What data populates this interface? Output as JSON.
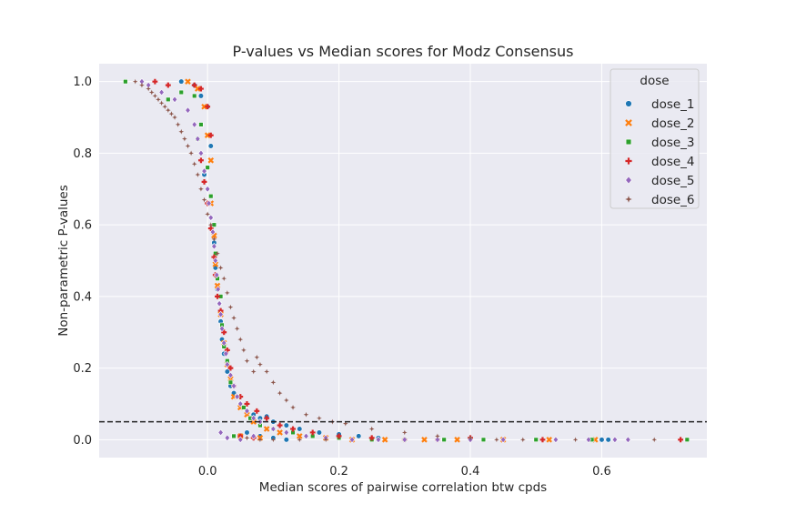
{
  "chart_data": {
    "type": "scatter",
    "title": "P-values vs Median scores for Modz Consensus",
    "xlabel": "Median scores of pairwise correlation btw cpds",
    "ylabel": "Non-parametric P-values",
    "xlim": [
      -0.165,
      0.76
    ],
    "ylim": [
      -0.05,
      1.05
    ],
    "x_ticks": [
      "0.0",
      "0.2",
      "0.4",
      "0.6"
    ],
    "x_tick_values": [
      0.0,
      0.2,
      0.4,
      0.6
    ],
    "y_ticks": [
      "0.0",
      "0.2",
      "0.4",
      "0.6",
      "0.8",
      "1.0"
    ],
    "y_tick_values": [
      0.0,
      0.2,
      0.4,
      0.6,
      0.8,
      1.0
    ],
    "grid": true,
    "background_color": "#eaeaf2",
    "reference_line": {
      "y": 0.05,
      "style": "dashed",
      "color": "#222222"
    },
    "legend": {
      "title": "dose",
      "placement": "top-right"
    },
    "series": [
      {
        "name": "dose_1",
        "marker": "circle",
        "color": "#1f77b4",
        "points": [
          [
            -0.04,
            1.0
          ],
          [
            -0.02,
            0.99
          ],
          [
            -0.01,
            0.96
          ],
          [
            0.0,
            0.93
          ],
          [
            -0.01,
            0.88
          ],
          [
            0.005,
            0.82
          ],
          [
            -0.005,
            0.74
          ],
          [
            0.0,
            0.7
          ],
          [
            0.005,
            0.62
          ],
          [
            0.01,
            0.55
          ],
          [
            0.012,
            0.48
          ],
          [
            0.015,
            0.42
          ],
          [
            0.018,
            0.38
          ],
          [
            0.02,
            0.33
          ],
          [
            0.022,
            0.28
          ],
          [
            0.025,
            0.24
          ],
          [
            0.03,
            0.19
          ],
          [
            0.035,
            0.15
          ],
          [
            0.04,
            0.13
          ],
          [
            0.05,
            0.1
          ],
          [
            0.06,
            0.08
          ],
          [
            0.07,
            0.07
          ],
          [
            0.08,
            0.06
          ],
          [
            0.09,
            0.065
          ],
          [
            0.1,
            0.05
          ],
          [
            0.12,
            0.04
          ],
          [
            0.14,
            0.03
          ],
          [
            0.17,
            0.02
          ],
          [
            0.2,
            0.015
          ],
          [
            0.23,
            0.01
          ],
          [
            0.26,
            0.005
          ],
          [
            0.3,
            0.0
          ],
          [
            0.35,
            0.0
          ],
          [
            0.45,
            0.0
          ],
          [
            0.6,
            0.0
          ],
          [
            0.61,
            0.0
          ],
          [
            0.06,
            0.02
          ],
          [
            0.08,
            0.01
          ],
          [
            0.1,
            0.005
          ],
          [
            0.12,
            0.0
          ]
        ]
      },
      {
        "name": "dose_2",
        "marker": "x",
        "color": "#ff7f0e",
        "points": [
          [
            -0.03,
            1.0
          ],
          [
            -0.015,
            0.98
          ],
          [
            -0.005,
            0.93
          ],
          [
            0.0,
            0.85
          ],
          [
            0.005,
            0.78
          ],
          [
            0.005,
            0.66
          ],
          [
            0.01,
            0.57
          ],
          [
            0.012,
            0.49
          ],
          [
            0.015,
            0.43
          ],
          [
            0.02,
            0.35
          ],
          [
            0.025,
            0.27
          ],
          [
            0.03,
            0.21
          ],
          [
            0.035,
            0.17
          ],
          [
            0.04,
            0.12
          ],
          [
            0.05,
            0.09
          ],
          [
            0.06,
            0.07
          ],
          [
            0.07,
            0.05
          ],
          [
            0.09,
            0.03
          ],
          [
            0.11,
            0.02
          ],
          [
            0.14,
            0.01
          ],
          [
            0.18,
            0.005
          ],
          [
            0.22,
            0.0
          ],
          [
            0.27,
            0.0
          ],
          [
            0.33,
            0.0
          ],
          [
            0.38,
            0.0
          ],
          [
            0.45,
            0.0
          ],
          [
            0.52,
            0.0
          ],
          [
            0.59,
            0.0
          ],
          [
            0.05,
            0.01
          ],
          [
            0.08,
            0.005
          ]
        ]
      },
      {
        "name": "dose_3",
        "marker": "square",
        "color": "#2ca02c",
        "points": [
          [
            -0.125,
            1.0
          ],
          [
            -0.06,
            0.95
          ],
          [
            -0.04,
            0.97
          ],
          [
            -0.02,
            0.96
          ],
          [
            -0.01,
            0.88
          ],
          [
            -0.015,
            0.84
          ],
          [
            0.0,
            0.76
          ],
          [
            0.005,
            0.68
          ],
          [
            0.01,
            0.6
          ],
          [
            0.012,
            0.52
          ],
          [
            0.015,
            0.45
          ],
          [
            0.02,
            0.4
          ],
          [
            0.022,
            0.32
          ],
          [
            0.025,
            0.26
          ],
          [
            0.03,
            0.22
          ],
          [
            0.035,
            0.16
          ],
          [
            0.045,
            0.12
          ],
          [
            0.055,
            0.09
          ],
          [
            0.065,
            0.06
          ],
          [
            0.08,
            0.04
          ],
          [
            0.1,
            0.03
          ],
          [
            0.13,
            0.02
          ],
          [
            0.16,
            0.01
          ],
          [
            0.2,
            0.005
          ],
          [
            0.25,
            0.0
          ],
          [
            0.3,
            0.0
          ],
          [
            0.36,
            0.0
          ],
          [
            0.42,
            0.0
          ],
          [
            0.5,
            0.0
          ],
          [
            0.585,
            0.0
          ],
          [
            0.73,
            0.0
          ],
          [
            0.04,
            0.01
          ]
        ]
      },
      {
        "name": "dose_4",
        "marker": "plus",
        "color": "#d62728",
        "points": [
          [
            -0.08,
            1.0
          ],
          [
            -0.06,
            0.99
          ],
          [
            -0.02,
            0.99
          ],
          [
            -0.01,
            0.98
          ],
          [
            0.0,
            0.93
          ],
          [
            0.005,
            0.85
          ],
          [
            -0.01,
            0.78
          ],
          [
            -0.005,
            0.72
          ],
          [
            0.0,
            0.66
          ],
          [
            0.005,
            0.59
          ],
          [
            0.01,
            0.51
          ],
          [
            0.012,
            0.46
          ],
          [
            0.015,
            0.4
          ],
          [
            0.02,
            0.36
          ],
          [
            0.025,
            0.3
          ],
          [
            0.03,
            0.25
          ],
          [
            0.035,
            0.2
          ],
          [
            0.04,
            0.15
          ],
          [
            0.05,
            0.12
          ],
          [
            0.06,
            0.1
          ],
          [
            0.075,
            0.08
          ],
          [
            0.09,
            0.06
          ],
          [
            0.11,
            0.04
          ],
          [
            0.13,
            0.03
          ],
          [
            0.16,
            0.02
          ],
          [
            0.2,
            0.01
          ],
          [
            0.25,
            0.005
          ],
          [
            0.3,
            0.0
          ],
          [
            0.35,
            0.0
          ],
          [
            0.4,
            0.005
          ],
          [
            0.51,
            0.0
          ],
          [
            0.72,
            0.0
          ],
          [
            0.05,
            0.01
          ],
          [
            0.07,
            0.005
          ]
        ]
      },
      {
        "name": "dose_5",
        "marker": "diamond",
        "color": "#9467bd",
        "points": [
          [
            -0.1,
            1.0
          ],
          [
            -0.09,
            0.99
          ],
          [
            -0.07,
            0.97
          ],
          [
            -0.05,
            0.95
          ],
          [
            -0.03,
            0.92
          ],
          [
            -0.02,
            0.88
          ],
          [
            -0.015,
            0.84
          ],
          [
            -0.01,
            0.8
          ],
          [
            -0.005,
            0.75
          ],
          [
            0.0,
            0.7
          ],
          [
            0.002,
            0.66
          ],
          [
            0.005,
            0.62
          ],
          [
            0.008,
            0.58
          ],
          [
            0.01,
            0.54
          ],
          [
            0.012,
            0.5
          ],
          [
            0.014,
            0.46
          ],
          [
            0.016,
            0.42
          ],
          [
            0.018,
            0.38
          ],
          [
            0.02,
            0.35
          ],
          [
            0.022,
            0.31
          ],
          [
            0.025,
            0.27
          ],
          [
            0.028,
            0.24
          ],
          [
            0.03,
            0.21
          ],
          [
            0.035,
            0.18
          ],
          [
            0.04,
            0.15
          ],
          [
            0.045,
            0.12
          ],
          [
            0.05,
            0.1
          ],
          [
            0.06,
            0.08
          ],
          [
            0.07,
            0.06
          ],
          [
            0.08,
            0.05
          ],
          [
            0.1,
            0.03
          ],
          [
            0.12,
            0.02
          ],
          [
            0.15,
            0.01
          ],
          [
            0.18,
            0.005
          ],
          [
            0.22,
            0.0
          ],
          [
            0.26,
            0.0
          ],
          [
            0.3,
            0.0
          ],
          [
            0.35,
            0.0
          ],
          [
            0.4,
            0.0
          ],
          [
            0.45,
            0.0
          ],
          [
            0.53,
            0.0
          ],
          [
            0.58,
            0.0
          ],
          [
            0.62,
            0.0
          ],
          [
            0.64,
            0.0
          ],
          [
            0.02,
            0.02
          ],
          [
            0.03,
            0.005
          ],
          [
            0.05,
            0.0
          ],
          [
            0.07,
            0.01
          ]
        ]
      },
      {
        "name": "dose_6",
        "marker": "star",
        "color": "#8c564b",
        "points": [
          [
            -0.11,
            1.0
          ],
          [
            -0.1,
            0.99
          ],
          [
            -0.09,
            0.98
          ],
          [
            -0.085,
            0.97
          ],
          [
            -0.08,
            0.96
          ],
          [
            -0.075,
            0.95
          ],
          [
            -0.07,
            0.94
          ],
          [
            -0.065,
            0.93
          ],
          [
            -0.06,
            0.92
          ],
          [
            -0.055,
            0.91
          ],
          [
            -0.05,
            0.9
          ],
          [
            -0.045,
            0.88
          ],
          [
            -0.04,
            0.86
          ],
          [
            -0.035,
            0.84
          ],
          [
            -0.03,
            0.82
          ],
          [
            -0.025,
            0.8
          ],
          [
            -0.02,
            0.77
          ],
          [
            -0.015,
            0.74
          ],
          [
            -0.01,
            0.7
          ],
          [
            -0.005,
            0.67
          ],
          [
            0.0,
            0.63
          ],
          [
            0.005,
            0.6
          ],
          [
            0.01,
            0.56
          ],
          [
            0.015,
            0.52
          ],
          [
            0.02,
            0.48
          ],
          [
            0.025,
            0.45
          ],
          [
            0.03,
            0.41
          ],
          [
            0.035,
            0.37
          ],
          [
            0.04,
            0.34
          ],
          [
            0.045,
            0.31
          ],
          [
            0.05,
            0.28
          ],
          [
            0.055,
            0.25
          ],
          [
            0.06,
            0.22
          ],
          [
            0.07,
            0.19
          ],
          [
            0.075,
            0.23
          ],
          [
            0.08,
            0.21
          ],
          [
            0.09,
            0.19
          ],
          [
            0.1,
            0.16
          ],
          [
            0.11,
            0.13
          ],
          [
            0.12,
            0.11
          ],
          [
            0.13,
            0.09
          ],
          [
            0.15,
            0.07
          ],
          [
            0.17,
            0.06
          ],
          [
            0.19,
            0.05
          ],
          [
            0.21,
            0.045
          ],
          [
            0.25,
            0.03
          ],
          [
            0.3,
            0.02
          ],
          [
            0.35,
            0.01
          ],
          [
            0.4,
            0.005
          ],
          [
            0.44,
            0.0
          ],
          [
            0.48,
            0.0
          ],
          [
            0.56,
            0.0
          ],
          [
            0.68,
            0.0
          ],
          [
            0.06,
            0.005
          ],
          [
            0.08,
            0.0
          ],
          [
            0.1,
            0.0
          ],
          [
            0.14,
            0.0
          ],
          [
            0.18,
            0.0
          ]
        ]
      }
    ]
  }
}
